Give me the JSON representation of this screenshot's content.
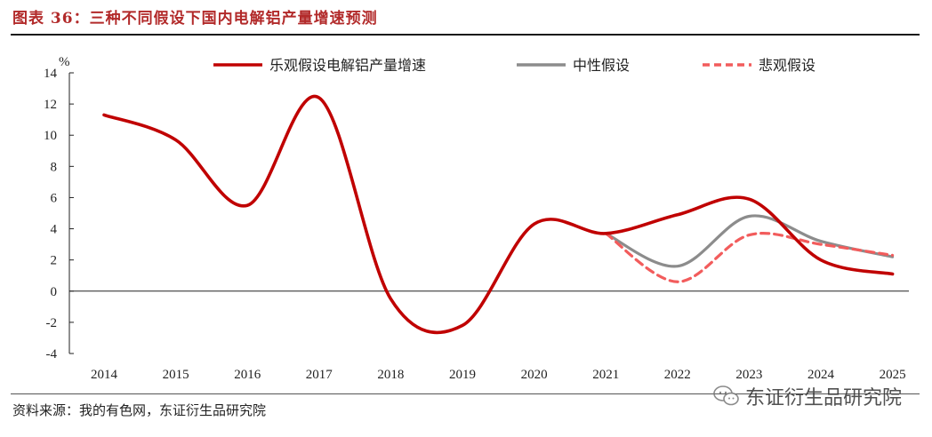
{
  "header": {
    "title": "图表 36：三种不同假设下国内电解铝产量增速预测"
  },
  "footer": {
    "source": "资料来源：我的有色网，东证衍生品研究院",
    "watermark": "东证衍生品研究院"
  },
  "chart_data": {
    "type": "line",
    "unit_label": "%",
    "x_categories": [
      "2014",
      "2015",
      "2016",
      "2017",
      "2018",
      "2019",
      "2020",
      "2021",
      "2022",
      "2023",
      "2024",
      "2025"
    ],
    "ylim": [
      -4,
      14
    ],
    "y_ticks": [
      14,
      12,
      10,
      8,
      6,
      4,
      2,
      0,
      -2,
      -4
    ],
    "grid": false,
    "legend_position": "top",
    "series": [
      {
        "name": "乐观假设电解铝产量增速",
        "color": "#c00000",
        "style": "solid",
        "points": [
          {
            "x": "2014",
            "y": 11.3
          },
          {
            "x": "2015",
            "y": 9.7
          },
          {
            "x": "2016",
            "y": 5.5
          },
          {
            "x": "2017",
            "y": 12.4
          },
          {
            "x": "2018",
            "y": -0.5
          },
          {
            "x": "2019",
            "y": -2.2
          },
          {
            "x": "2020",
            "y": 4.3
          },
          {
            "x": "2021",
            "y": 3.7
          },
          {
            "x": "2022",
            "y": 4.9
          },
          {
            "x": "2023",
            "y": 5.9
          },
          {
            "x": "2024",
            "y": 2.0
          },
          {
            "x": "2025",
            "y": 1.1
          }
        ]
      },
      {
        "name": "中性假设",
        "color": "#8c8c8c",
        "style": "solid",
        "points": [
          {
            "x": "2021",
            "y": 3.7
          },
          {
            "x": "2022",
            "y": 1.6
          },
          {
            "x": "2023",
            "y": 4.8
          },
          {
            "x": "2024",
            "y": 3.2
          },
          {
            "x": "2025",
            "y": 2.2
          }
        ]
      },
      {
        "name": "悲观假设",
        "color": "#f25c5c",
        "style": "dashed",
        "points": [
          {
            "x": "2021",
            "y": 3.7
          },
          {
            "x": "2022",
            "y": 0.6
          },
          {
            "x": "2023",
            "y": 3.6
          },
          {
            "x": "2024",
            "y": 3.0
          },
          {
            "x": "2025",
            "y": 2.3
          }
        ]
      }
    ]
  }
}
